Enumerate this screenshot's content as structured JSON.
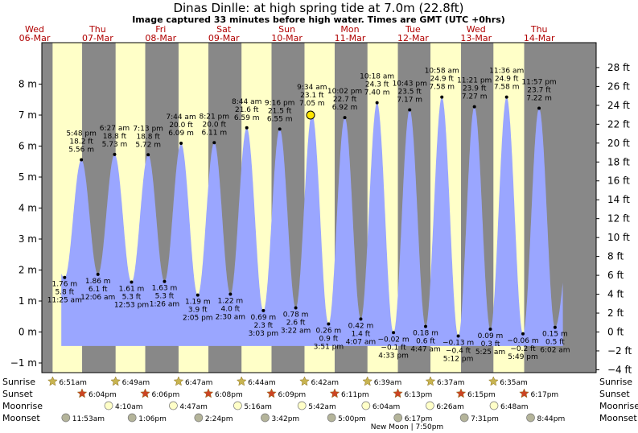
{
  "title": "Dinas Dinlle: at high  spring tide at 7.0m (22.8ft)",
  "subtitle": "Image captured 33 minutes before high water. Times are GMT (UTC +0hrs)",
  "colors": {
    "day": "#ffffc8",
    "night": "#888888",
    "tide": "#9aa6ff",
    "daylabel": "#b00000",
    "sun_star": "#c8b450",
    "sunset_star": "#cc4422",
    "moon_rise": "#ffffc8",
    "moon_set": "#b4b49a"
  },
  "days": [
    {
      "dow": "Wed",
      "date": "06-Mar"
    },
    {
      "dow": "Thu",
      "date": "07-Mar"
    },
    {
      "dow": "Fri",
      "date": "08-Mar"
    },
    {
      "dow": "Sat",
      "date": "09-Mar"
    },
    {
      "dow": "Sun",
      "date": "10-Mar"
    },
    {
      "dow": "Mon",
      "date": "11-Mar"
    },
    {
      "dow": "Tue",
      "date": "12-Mar"
    },
    {
      "dow": "Wed",
      "date": "13-Mar"
    },
    {
      "dow": "Thu",
      "date": "14-Mar"
    }
  ],
  "chart_data": {
    "type": "area",
    "ylabel_left": "m",
    "ylabel_right": "ft",
    "ylim_m": [
      -1.3,
      9.1
    ],
    "left_ticks": [
      "−1 m",
      "0 m",
      "1 m",
      "2 m",
      "3 m",
      "4 m",
      "5 m",
      "6 m",
      "7 m",
      "8 m"
    ],
    "left_tick_values": [
      -1,
      0,
      1,
      2,
      3,
      4,
      5,
      6,
      7,
      8
    ],
    "right_ticks": [
      "−4 ft",
      "−2 ft",
      "0 ft",
      "2 ft",
      "4 ft",
      "6 ft",
      "8 ft",
      "10 ft",
      "12 ft",
      "14 ft",
      "16 ft",
      "18 ft",
      "20 ft",
      "22 ft",
      "24 ft",
      "26 ft",
      "28 ft"
    ],
    "right_tick_values_ft": [
      -4,
      -2,
      0,
      2,
      4,
      6,
      8,
      10,
      12,
      14,
      16,
      18,
      20,
      22,
      24,
      26,
      28
    ],
    "current_marker": {
      "time": "Sun 10-Mar 09:01",
      "height_m": 7.0
    },
    "tide_events": [
      {
        "time": "5:48 pm",
        "ft": "18.2 ft",
        "m": "5.56 m",
        "type": "high",
        "day": 0,
        "hour": 17.8,
        "value": 5.56
      },
      {
        "time": "11:25 am",
        "ft": "5.8 ft",
        "m": "1.76 m",
        "type": "low",
        "day": 0,
        "hour": 11.42,
        "value": 1.76
      },
      {
        "time": "6:27 am",
        "ft": "18.8 ft",
        "m": "5.73 m",
        "type": "high",
        "day": 1,
        "hour": 6.45,
        "value": 5.73
      },
      {
        "time": "12:06 am",
        "ft": "6.1 ft",
        "m": "1.86 m",
        "type": "low",
        "day": 1,
        "hour": 0.1,
        "value": 1.86
      },
      {
        "time": "7:13 pm",
        "ft": "18.8 ft",
        "m": "5.72 m",
        "type": "high",
        "day": 1,
        "hour": 19.22,
        "value": 5.72
      },
      {
        "time": "12:53 pm",
        "ft": "5.3 ft",
        "m": "1.61 m",
        "type": "low",
        "day": 1,
        "hour": 12.88,
        "value": 1.61
      },
      {
        "time": "7:44 am",
        "ft": "20.0 ft",
        "m": "6.09 m",
        "type": "high",
        "day": 2,
        "hour": 7.73,
        "value": 6.09
      },
      {
        "time": "1:26 am",
        "ft": "5.3 ft",
        "m": "1.63 m",
        "type": "low",
        "day": 2,
        "hour": 1.43,
        "value": 1.63
      },
      {
        "time": "8:21 pm",
        "ft": "20.0 ft",
        "m": "6.11 m",
        "type": "high",
        "day": 2,
        "hour": 20.35,
        "value": 6.11
      },
      {
        "time": "2:05 pm",
        "ft": "3.9 ft",
        "m": "1.19 m",
        "type": "low",
        "day": 2,
        "hour": 14.08,
        "value": 1.19
      },
      {
        "time": "8:44 am",
        "ft": "21.6 ft",
        "m": "6.59 m",
        "type": "high",
        "day": 3,
        "hour": 8.73,
        "value": 6.59
      },
      {
        "time": "2:30 am",
        "ft": "4.0 ft",
        "m": "1.22 m",
        "type": "low",
        "day": 3,
        "hour": 2.5,
        "value": 1.22
      },
      {
        "time": "9:16 pm",
        "ft": "21.5 ft",
        "m": "6.55 m",
        "type": "high",
        "day": 3,
        "hour": 21.27,
        "value": 6.55
      },
      {
        "time": "3:03 pm",
        "ft": "2.3 ft",
        "m": "0.69 m",
        "type": "low",
        "day": 3,
        "hour": 15.05,
        "value": 0.69
      },
      {
        "time": "9:34 am",
        "ft": "23.1 ft",
        "m": "7.05 m",
        "type": "high",
        "day": 4,
        "hour": 9.57,
        "value": 7.05
      },
      {
        "time": "3:22 am",
        "ft": "2.6 ft",
        "m": "0.78 m",
        "type": "low",
        "day": 4,
        "hour": 3.37,
        "value": 0.78
      },
      {
        "time": "10:02 pm",
        "ft": "22.7 ft",
        "m": "6.92 m",
        "type": "high",
        "day": 4,
        "hour": 22.03,
        "value": 6.92
      },
      {
        "time": "3:51 pm",
        "ft": "0.9 ft",
        "m": "0.26 m",
        "type": "low",
        "day": 4,
        "hour": 15.85,
        "value": 0.26
      },
      {
        "time": "10:18 am",
        "ft": "24.3 ft",
        "m": "7.40 m",
        "type": "high",
        "day": 5,
        "hour": 10.3,
        "value": 7.4
      },
      {
        "time": "4:07 am",
        "ft": "1.4 ft",
        "m": "0.42 m",
        "type": "low",
        "day": 5,
        "hour": 4.12,
        "value": 0.42
      },
      {
        "time": "10:43 pm",
        "ft": "23.5 ft",
        "m": "7.17 m",
        "type": "high",
        "day": 5,
        "hour": 22.72,
        "value": 7.17
      },
      {
        "time": "4:33 pm",
        "ft": "−0.1 ft",
        "m": "−0.02 m",
        "type": "low",
        "day": 5,
        "hour": 16.55,
        "value": -0.02
      },
      {
        "time": "10:58 am",
        "ft": "24.9 ft",
        "m": "7.58 m",
        "type": "high",
        "day": 6,
        "hour": 10.97,
        "value": 7.58
      },
      {
        "time": "4:47 am",
        "ft": "0.6 ft",
        "m": "0.18 m",
        "type": "low",
        "day": 6,
        "hour": 4.78,
        "value": 0.18
      },
      {
        "time": "11:21 pm",
        "ft": "23.9 ft",
        "m": "7.27 m",
        "type": "high",
        "day": 6,
        "hour": 23.35,
        "value": 7.27
      },
      {
        "time": "5:12 pm",
        "ft": "−0.4 ft",
        "m": "−0.13 m",
        "type": "low",
        "day": 6,
        "hour": 17.2,
        "value": -0.13
      },
      {
        "time": "11:36 am",
        "ft": "24.9 ft",
        "m": "7.58 m",
        "type": "high",
        "day": 7,
        "hour": 11.6,
        "value": 7.58
      },
      {
        "time": "5:25 am",
        "ft": "0.3 ft",
        "m": "0.09 m",
        "type": "low",
        "day": 7,
        "hour": 5.42,
        "value": 0.09
      },
      {
        "time": "11:57 pm",
        "ft": "23.7 ft",
        "m": "7.22 m",
        "type": "high",
        "day": 7,
        "hour": 23.95,
        "value": 7.22
      },
      {
        "time": "5:49 pm",
        "ft": "−0.2 ft",
        "m": "−0.06 m",
        "type": "low",
        "day": 7,
        "hour": 17.82,
        "value": -0.06
      },
      {
        "time": "6:02 am",
        "ft": "0.5 ft",
        "m": "0.15 m",
        "type": "low",
        "day": 8,
        "hour": 6.03,
        "value": 0.15
      }
    ]
  },
  "rows": {
    "sunrise_label": "Sunrise",
    "sunset_label": "Sunset",
    "moonrise_label": "Moonrise",
    "moonset_label": "Moonset",
    "sunrise": [
      {
        "day": 0,
        "hour": 6.85,
        "label": "6:51am"
      },
      {
        "day": 1,
        "hour": 6.82,
        "label": "6:49am"
      },
      {
        "day": 2,
        "hour": 6.78,
        "label": "6:47am"
      },
      {
        "day": 3,
        "hour": 6.73,
        "label": "6:44am"
      },
      {
        "day": 4,
        "hour": 6.7,
        "label": "6:42am"
      },
      {
        "day": 5,
        "hour": 6.65,
        "label": "6:39am"
      },
      {
        "day": 6,
        "hour": 6.62,
        "label": "6:37am"
      },
      {
        "day": 7,
        "hour": 6.58,
        "label": "6:35am"
      }
    ],
    "sunset": [
      {
        "day": 0,
        "hour": 18.07,
        "label": "6:04pm"
      },
      {
        "day": 1,
        "hour": 18.1,
        "label": "6:06pm"
      },
      {
        "day": 2,
        "hour": 18.13,
        "label": "6:08pm"
      },
      {
        "day": 3,
        "hour": 18.15,
        "label": "6:09pm"
      },
      {
        "day": 4,
        "hour": 18.18,
        "label": "6:11pm"
      },
      {
        "day": 5,
        "hour": 18.22,
        "label": "6:13pm"
      },
      {
        "day": 6,
        "hour": 18.25,
        "label": "6:15pm"
      },
      {
        "day": 7,
        "hour": 18.28,
        "label": "6:17pm"
      }
    ],
    "moonrise": [
      {
        "day": 1,
        "hour": 4.17,
        "label": "4:10am"
      },
      {
        "day": 2,
        "hour": 4.78,
        "label": "4:47am"
      },
      {
        "day": 3,
        "hour": 5.27,
        "label": "5:16am"
      },
      {
        "day": 4,
        "hour": 5.7,
        "label": "5:42am"
      },
      {
        "day": 5,
        "hour": 6.07,
        "label": "6:04am"
      },
      {
        "day": 6,
        "hour": 6.43,
        "label": "6:26am"
      },
      {
        "day": 7,
        "hour": 6.8,
        "label": "6:48am"
      }
    ],
    "moonset": [
      {
        "day": 0,
        "hour": 11.88,
        "label": "11:53am"
      },
      {
        "day": 1,
        "hour": 13.1,
        "label": "1:06pm"
      },
      {
        "day": 2,
        "hour": 14.4,
        "label": "2:24pm"
      },
      {
        "day": 3,
        "hour": 15.7,
        "label": "3:42pm"
      },
      {
        "day": 4,
        "hour": 17.0,
        "label": "5:00pm"
      },
      {
        "day": 5,
        "hour": 18.28,
        "label": "6:17pm"
      },
      {
        "day": 6,
        "hour": 19.52,
        "label": "7:31pm"
      },
      {
        "day": 7,
        "hour": 20.73,
        "label": "8:44pm"
      }
    ],
    "moon_phase": "New Moon | 7:50pm"
  }
}
